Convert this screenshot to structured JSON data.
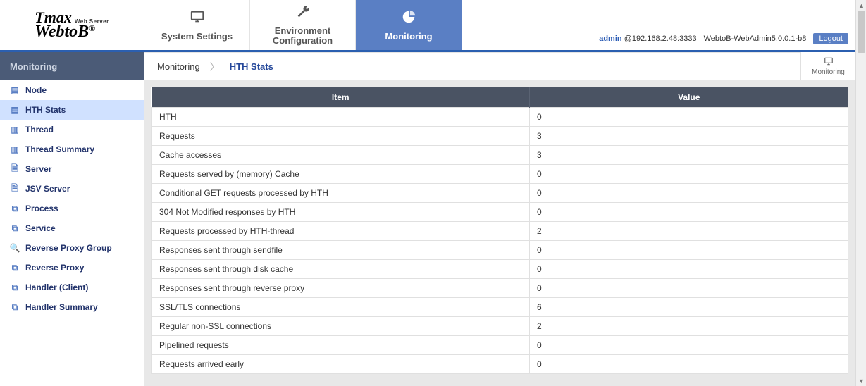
{
  "logo": {
    "line1": "Tmax",
    "sub": "Web Server",
    "line2": "WebtoB",
    "reg": "®"
  },
  "nav": {
    "tabs": [
      {
        "label": "System Settings"
      },
      {
        "label": "Environment Configuration"
      },
      {
        "label": "Monitoring"
      }
    ]
  },
  "header_right": {
    "user": "admin",
    "host": "@192.168.2.48:3333",
    "version": "WebtoB-WebAdmin5.0.0.1-b8",
    "logout": "Logout"
  },
  "sidebar": {
    "title": "Monitoring",
    "items": [
      {
        "label": "Node"
      },
      {
        "label": "HTH Stats"
      },
      {
        "label": "Thread"
      },
      {
        "label": "Thread Summary"
      },
      {
        "label": "Server"
      },
      {
        "label": "JSV Server"
      },
      {
        "label": "Process"
      },
      {
        "label": "Service"
      },
      {
        "label": "Reverse Proxy Group"
      },
      {
        "label": "Reverse Proxy"
      },
      {
        "label": "Handler (Client)"
      },
      {
        "label": "Handler Summary"
      }
    ]
  },
  "breadcrumb": {
    "root": "Monitoring",
    "current": "HTH Stats",
    "action": "Monitoring"
  },
  "table": {
    "headers": {
      "item": "Item",
      "value": "Value"
    },
    "rows": [
      {
        "item": "HTH",
        "value": "0"
      },
      {
        "item": "Requests",
        "value": "3"
      },
      {
        "item": "Cache accesses",
        "value": "3"
      },
      {
        "item": "Requests served by (memory) Cache",
        "value": "0"
      },
      {
        "item": "Conditional GET requests processed by HTH",
        "value": "0"
      },
      {
        "item": "304 Not Modified responses by HTH",
        "value": "0"
      },
      {
        "item": "Requests processed by HTH-thread",
        "value": "2"
      },
      {
        "item": "Responses sent through sendfile",
        "value": "0"
      },
      {
        "item": "Responses sent through disk cache",
        "value": "0"
      },
      {
        "item": "Responses sent through reverse proxy",
        "value": "0"
      },
      {
        "item": "SSL/TLS connections",
        "value": "6"
      },
      {
        "item": "Regular non-SSL connections",
        "value": "2"
      },
      {
        "item": "Pipelined requests",
        "value": "0"
      },
      {
        "item": "Requests arrived early",
        "value": "0"
      }
    ]
  }
}
